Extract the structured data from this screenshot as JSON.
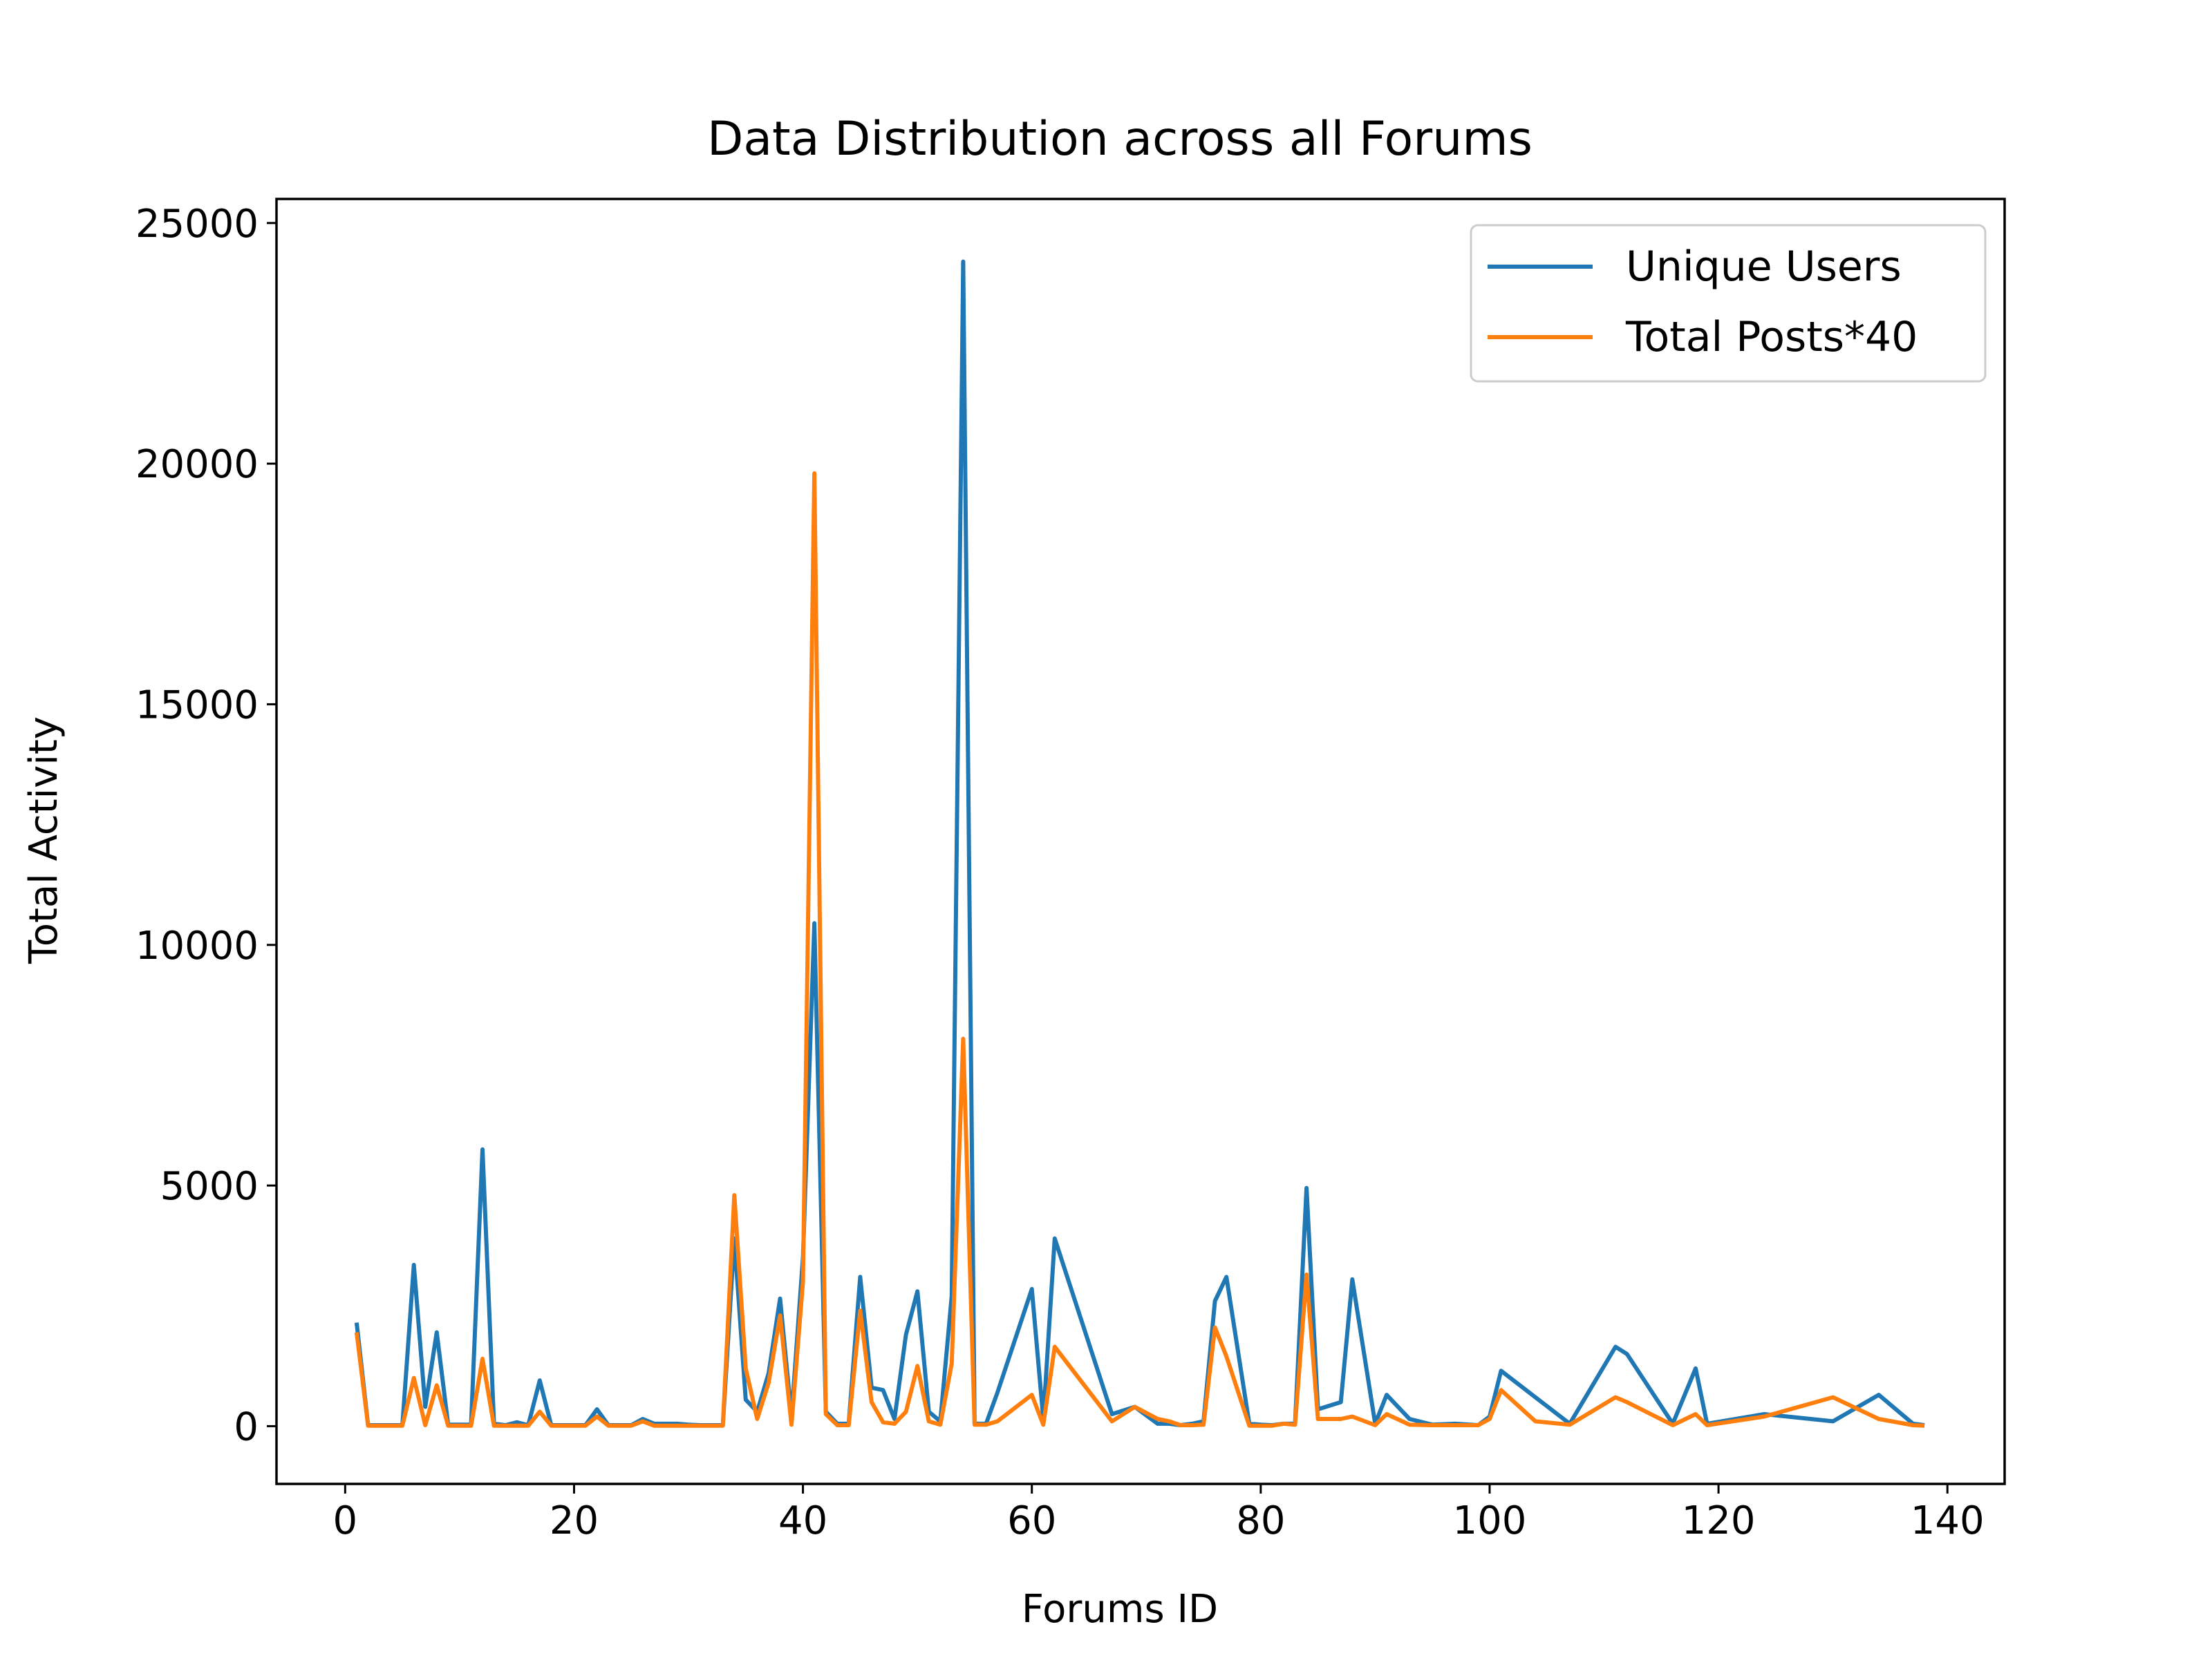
{
  "chart_data": {
    "type": "line",
    "title": "Data Distribution across all Forums",
    "xlabel": "Forums ID",
    "ylabel": "Total Activity",
    "xlim": [
      -6,
      145
    ],
    "ylim": [
      -1200,
      25500
    ],
    "xticks": [
      0,
      20,
      40,
      60,
      80,
      100,
      120,
      140
    ],
    "yticks": [
      0,
      5000,
      10000,
      15000,
      20000,
      25000
    ],
    "legend_position": "top-right",
    "grid": false,
    "series": [
      {
        "name": "Unique Users",
        "color": "#1f77b4",
        "x": [
          1,
          2,
          3,
          4,
          5,
          6,
          7,
          8,
          9,
          10,
          11,
          12,
          13,
          14,
          15,
          16,
          17,
          18,
          19,
          20,
          21,
          22,
          23,
          24,
          25,
          26,
          27,
          28,
          29,
          30,
          31,
          32,
          33,
          34,
          35,
          36,
          37,
          38,
          39,
          40,
          41,
          42,
          43,
          44,
          45,
          46,
          47,
          48,
          49,
          50,
          51,
          52,
          53,
          54,
          55,
          56,
          57,
          60,
          61,
          62,
          67,
          69,
          71,
          72,
          73,
          74,
          75,
          76,
          77,
          79,
          80,
          81,
          82,
          83,
          84,
          85,
          87,
          88,
          90,
          91,
          93,
          95,
          97,
          99,
          100,
          101,
          104,
          107,
          111,
          112,
          116,
          118,
          119,
          124,
          130,
          134,
          137,
          138
        ],
        "values": [
          2150,
          20,
          20,
          20,
          20,
          3350,
          400,
          1950,
          30,
          30,
          30,
          5750,
          50,
          20,
          80,
          20,
          950,
          20,
          20,
          20,
          20,
          350,
          20,
          20,
          20,
          150,
          50,
          50,
          50,
          30,
          20,
          20,
          20,
          3900,
          550,
          300,
          1100,
          2650,
          200,
          3500,
          10450,
          300,
          50,
          50,
          3100,
          800,
          750,
          150,
          1900,
          2800,
          300,
          100,
          2700,
          24200,
          50,
          50,
          700,
          2850,
          150,
          3900,
          250,
          400,
          50,
          50,
          20,
          50,
          100,
          2600,
          3100,
          50,
          30,
          20,
          50,
          50,
          4950,
          350,
          500,
          3050,
          50,
          650,
          150,
          30,
          50,
          20,
          200,
          1150,
          600,
          50,
          1650,
          1500,
          50,
          1200,
          50,
          250,
          100,
          650,
          50,
          20
        ]
      },
      {
        "name": "Total Posts*40",
        "color": "#ff7f0e",
        "x": [
          1,
          2,
          3,
          4,
          5,
          6,
          7,
          8,
          9,
          10,
          11,
          12,
          13,
          14,
          15,
          16,
          17,
          18,
          19,
          20,
          21,
          22,
          23,
          24,
          25,
          26,
          27,
          28,
          29,
          30,
          31,
          32,
          33,
          34,
          35,
          36,
          37,
          38,
          39,
          40,
          41,
          42,
          43,
          44,
          45,
          46,
          47,
          48,
          49,
          50,
          51,
          52,
          53,
          54,
          55,
          56,
          57,
          60,
          61,
          62,
          67,
          69,
          71,
          72,
          73,
          74,
          75,
          76,
          77,
          79,
          80,
          81,
          82,
          83,
          84,
          85,
          87,
          88,
          90,
          91,
          93,
          95,
          97,
          99,
          100,
          101,
          104,
          107,
          111,
          112,
          116,
          118,
          119,
          124,
          130,
          134,
          137,
          138
        ],
        "values": [
          1950,
          10,
          10,
          10,
          10,
          1000,
          20,
          850,
          10,
          10,
          10,
          1400,
          10,
          10,
          10,
          10,
          300,
          10,
          10,
          10,
          10,
          200,
          10,
          10,
          10,
          100,
          10,
          10,
          10,
          10,
          10,
          10,
          10,
          4800,
          1200,
          150,
          900,
          2300,
          30,
          3000,
          19800,
          250,
          20,
          20,
          2400,
          500,
          80,
          50,
          300,
          1250,
          100,
          30,
          1300,
          8050,
          30,
          30,
          100,
          650,
          30,
          1650,
          100,
          400,
          150,
          100,
          20,
          20,
          30,
          2050,
          1450,
          10,
          10,
          10,
          50,
          30,
          3150,
          150,
          150,
          200,
          20,
          250,
          30,
          20,
          20,
          20,
          150,
          750,
          100,
          30,
          600,
          500,
          20,
          250,
          20,
          200,
          600,
          150,
          20,
          10
        ]
      }
    ]
  }
}
